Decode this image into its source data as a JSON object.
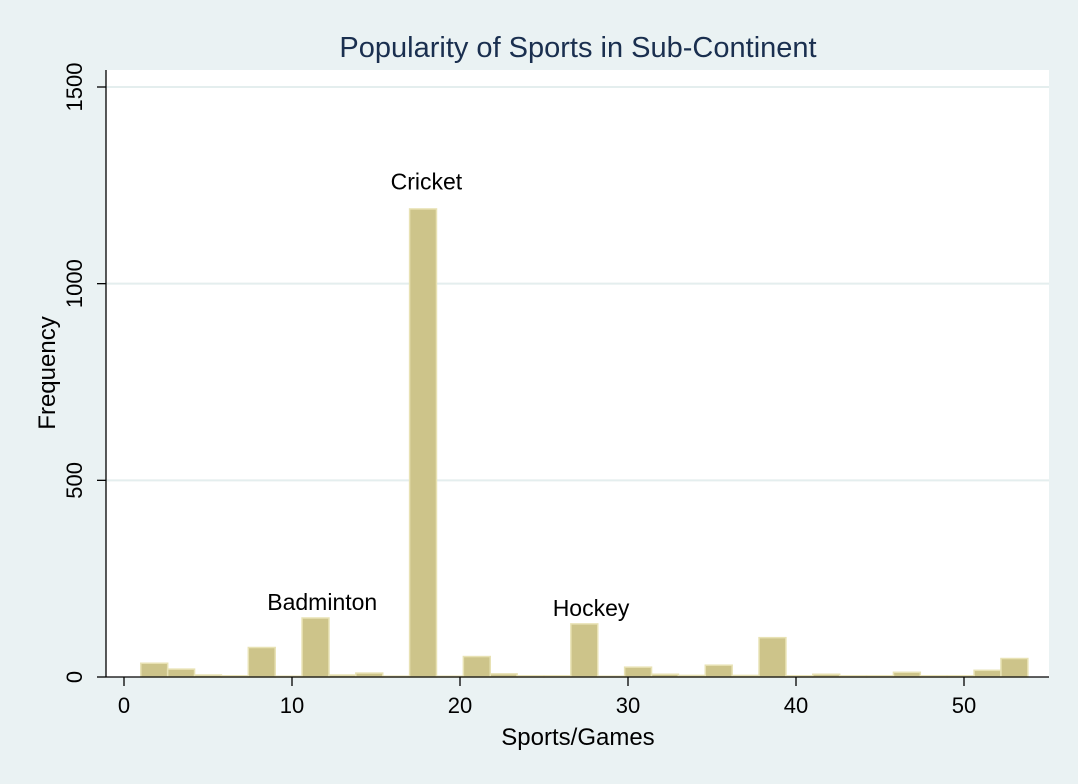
{
  "chart_data": {
    "type": "bar",
    "title": "Popularity of Sports in Sub-Continent",
    "xlabel": "Sports/Games",
    "ylabel": "Frequency",
    "xlim": [
      -1,
      55
    ],
    "ylim": [
      0,
      1550
    ],
    "xticks": [
      0,
      10,
      20,
      30,
      40,
      50
    ],
    "yticks": [
      0,
      500,
      1000,
      1500
    ],
    "bin_width": 1.6,
    "grid": true,
    "colors": {
      "bar_fill": "#cdc48a",
      "bar_stroke": "#e8e2b4",
      "plot_bg": "#ffffff",
      "page_bg": "#eaf2f3",
      "grid": "#e4eeee",
      "title": "#1a2f4f"
    },
    "bars": [
      {
        "x": 1.8,
        "value": 35
      },
      {
        "x": 3.4,
        "value": 20
      },
      {
        "x": 5.0,
        "value": 5
      },
      {
        "x": 6.6,
        "value": 3
      },
      {
        "x": 8.2,
        "value": 75
      },
      {
        "x": 9.8,
        "value": 2
      },
      {
        "x": 11.4,
        "value": 150
      },
      {
        "x": 13.0,
        "value": 5
      },
      {
        "x": 14.6,
        "value": 10
      },
      {
        "x": 16.2,
        "value": 2
      },
      {
        "x": 17.8,
        "value": 1190
      },
      {
        "x": 19.4,
        "value": 2
      },
      {
        "x": 21.0,
        "value": 52
      },
      {
        "x": 22.6,
        "value": 8
      },
      {
        "x": 24.2,
        "value": 3
      },
      {
        "x": 25.8,
        "value": 3
      },
      {
        "x": 27.4,
        "value": 135
      },
      {
        "x": 29.0,
        "value": 2
      },
      {
        "x": 30.6,
        "value": 25
      },
      {
        "x": 32.2,
        "value": 7
      },
      {
        "x": 33.8,
        "value": 4
      },
      {
        "x": 35.4,
        "value": 30
      },
      {
        "x": 37.0,
        "value": 4
      },
      {
        "x": 38.6,
        "value": 100
      },
      {
        "x": 40.2,
        "value": 3
      },
      {
        "x": 41.8,
        "value": 7
      },
      {
        "x": 43.4,
        "value": 3
      },
      {
        "x": 45.0,
        "value": 3
      },
      {
        "x": 46.6,
        "value": 12
      },
      {
        "x": 48.2,
        "value": 3
      },
      {
        "x": 49.8,
        "value": 3
      },
      {
        "x": 51.4,
        "value": 17
      },
      {
        "x": 53.0,
        "value": 47
      }
    ],
    "annotations": [
      {
        "text": "Cricket",
        "x": 18.0,
        "y": 1240
      },
      {
        "text": "Badminton",
        "x": 11.8,
        "y": 170
      },
      {
        "text": "Hockey",
        "x": 27.8,
        "y": 155
      }
    ]
  }
}
